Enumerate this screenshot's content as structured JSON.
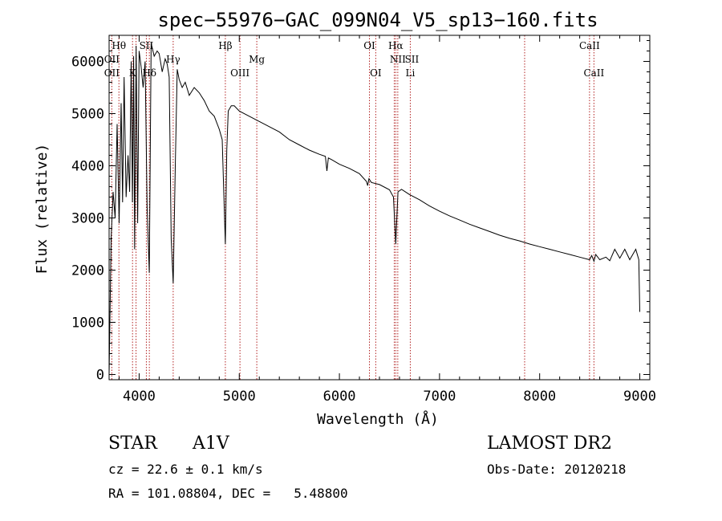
{
  "chart_data": {
    "type": "line",
    "title": "spec−55976−GAC_099N04_V5_sp13−160.fits",
    "xlabel": "Wavelength (Å)",
    "ylabel": "Flux (relative)",
    "xlim": [
      3700,
      9100
    ],
    "ylim": [
      -100,
      6500
    ],
    "xticks": [
      4000,
      5000,
      6000,
      7000,
      8000,
      9000
    ],
    "yticks": [
      0,
      1000,
      2000,
      3000,
      4000,
      5000,
      6000
    ],
    "grid": false,
    "series": [
      {
        "x": [
          3700,
          3720,
          3740,
          3760,
          3780,
          3800,
          3820,
          3835,
          3850,
          3870,
          3889,
          3905,
          3920,
          3933,
          3945,
          3955,
          3970,
          3985,
          4000,
          4020,
          4040,
          4060,
          4080,
          4101,
          4120,
          4150,
          4180,
          4200,
          4230,
          4260,
          4280,
          4300,
          4320,
          4340,
          4361,
          4380,
          4400,
          4430,
          4460,
          4500,
          4550,
          4600,
          4650,
          4700,
          4750,
          4800,
          4830,
          4850,
          4861,
          4875,
          4890,
          4920,
          4950,
          5000,
          5100,
          5200,
          5300,
          5400,
          5500,
          5600,
          5700,
          5800,
          5860,
          5875,
          5890,
          5920,
          6000,
          6100,
          6200,
          6270,
          6282,
          6295,
          6320,
          6400,
          6500,
          6540,
          6563,
          6585,
          6620,
          6700,
          6800,
          6900,
          7000,
          7100,
          7200,
          7300,
          7400,
          7500,
          7600,
          7700,
          7800,
          7900,
          8000,
          8100,
          8200,
          8300,
          8400,
          8498,
          8520,
          8542,
          8560,
          8600,
          8662,
          8700,
          8750,
          8800,
          8850,
          8900,
          8960,
          8990,
          9000
        ],
        "y": [
          0,
          2600,
          3500,
          3000,
          4800,
          2900,
          5200,
          3300,
          5700,
          3400,
          4200,
          3500,
          6000,
          3300,
          6100,
          2400,
          6300,
          2900,
          6200,
          5900,
          5500,
          6000,
          3200,
          1950,
          6350,
          6100,
          6200,
          6150,
          5800,
          6050,
          5950,
          5700,
          2600,
          1750,
          4000,
          5850,
          5650,
          5500,
          5600,
          5350,
          5500,
          5400,
          5250,
          5050,
          4950,
          4700,
          4500,
          3200,
          2500,
          4300,
          5050,
          5150,
          5150,
          5050,
          4950,
          4850,
          4750,
          4650,
          4500,
          4400,
          4300,
          4220,
          4180,
          3900,
          4150,
          4120,
          4030,
          3950,
          3850,
          3700,
          3620,
          3750,
          3680,
          3640,
          3540,
          3400,
          2500,
          3500,
          3550,
          3450,
          3350,
          3230,
          3130,
          3040,
          2960,
          2880,
          2810,
          2740,
          2670,
          2610,
          2560,
          2500,
          2450,
          2400,
          2350,
          2300,
          2250,
          2200,
          2280,
          2170,
          2300,
          2200,
          2250,
          2180,
          2400,
          2230,
          2400,
          2200,
          2400,
          2200,
          1200
        ]
      }
    ],
    "spectral_lines": [
      {
        "label": "Hθ",
        "wavelength": 3798,
        "row": 1
      },
      {
        "label": "OII",
        "wavelength": 3727,
        "row": 2
      },
      {
        "label": "OII",
        "wavelength": 3727,
        "row": 3
      },
      {
        "label": "SII",
        "wavelength": 4072,
        "row": 1
      },
      {
        "label": "K",
        "wavelength": 3934,
        "row": 3
      },
      {
        "label": "Hδ",
        "wavelength": 4102,
        "row": 3
      },
      {
        "label": "Hγ",
        "wavelength": 4340,
        "row": 2
      },
      {
        "label": "Hβ",
        "wavelength": 4861,
        "row": 1
      },
      {
        "label": "Mg",
        "wavelength": 5175,
        "row": 2
      },
      {
        "label": "OIII",
        "wavelength": 5007,
        "row": 3
      },
      {
        "label": "OI",
        "wavelength": 6300,
        "row": 1
      },
      {
        "label": "OI",
        "wavelength": 6363,
        "row": 3
      },
      {
        "label": "Hα",
        "wavelength": 6563,
        "row": 1
      },
      {
        "label": "NII",
        "wavelength": 6583,
        "row": 2
      },
      {
        "label": "Li",
        "wavelength": 6708,
        "row": 3
      },
      {
        "label": "SII",
        "wavelength": 6724,
        "row": 2
      },
      {
        "label": "CaII",
        "wavelength": 8498,
        "row": 1
      },
      {
        "label": "CaII",
        "wavelength": 8542,
        "row": 3
      }
    ],
    "marker_wavelengths": [
      3727,
      3798,
      3934,
      3969,
      4072,
      4102,
      4340,
      4861,
      5007,
      5175,
      6300,
      6363,
      6548,
      6563,
      6583,
      6708,
      7850,
      8498,
      8542
    ]
  },
  "info": {
    "object_class": "STAR",
    "subclass": "A1V",
    "survey": "LAMOST DR2",
    "redshift": "cz = 22.6 ± 0.1 km/s",
    "obs_date": "Obs-Date: 20120218",
    "coords": "RA = 101.08804, DEC =   5.48800"
  }
}
